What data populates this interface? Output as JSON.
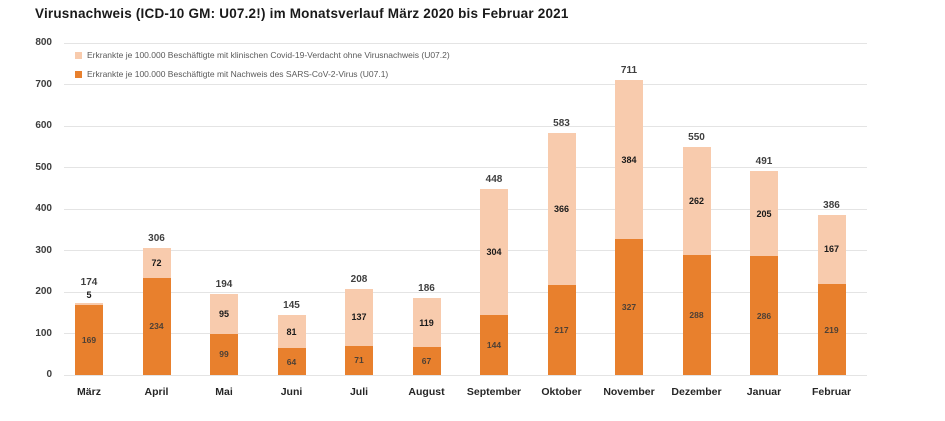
{
  "title": "Virusnachweis (ICD-10 GM: U07.2!) im Monatsverlauf März 2020 bis Februar 2021",
  "legend": [
    {
      "label": "Erkrankte je 100.000 Beschäftigte mit klinischen Covid-19-Verdacht ohne Virusnachweis (U07.2)",
      "color": "#F8CBAD"
    },
    {
      "label": "Erkrankte je 100.000 Beschäftigte mit Nachweis des SARS-CoV-2-Virus (U07.1)",
      "color": "#E8802D"
    }
  ],
  "colors": {
    "bar_dark": "#E8802D",
    "bar_light": "#F8CBAD",
    "gridline": "#E4E4E4",
    "title_text": "#1A1A1A",
    "legend_text": "#5A5A5A",
    "axis_tick_text": "#3D3D3D",
    "month_text": "#262626",
    "total_label_text": "#3F3F3F",
    "inside_dark_label_text": "#4D4036",
    "inside_light_label_text": "#1A1A1A"
  },
  "chart_data": {
    "type": "bar",
    "stacked": true,
    "title": "Virusnachweis (ICD-10 GM: U07.2!) im Monatsverlauf März 2020 bis Februar 2021",
    "categories": [
      "März",
      "April",
      "Mai",
      "Juni",
      "Juli",
      "August",
      "September",
      "Oktober",
      "November",
      "Dezember",
      "Januar",
      "Februar"
    ],
    "series": [
      {
        "name": "Erkrankte je 100.000 Beschäftigte mit Nachweis des SARS-CoV-2-Virus (U07.1)",
        "color": "#E8802D",
        "values": [
          169,
          234,
          99,
          64,
          71,
          67,
          144,
          217,
          327,
          288,
          286,
          219
        ]
      },
      {
        "name": "Erkrankte je 100.000 Beschäftigte mit klinischen Covid-19-Verdacht ohne Virusnachweis (U07.2)",
        "color": "#F8CBAD",
        "values": [
          5,
          72,
          95,
          81,
          137,
          119,
          304,
          366,
          384,
          262,
          205,
          167
        ]
      }
    ],
    "totals": [
      174,
      306,
      194,
      145,
      208,
      186,
      448,
      583,
      711,
      550,
      491,
      386
    ],
    "xlabel": "",
    "ylabel": "",
    "ylim": [
      0,
      800
    ],
    "ytick_step": 100,
    "yticks": [
      "0",
      "100",
      "200",
      "300",
      "400",
      "500",
      "600",
      "700",
      "800"
    ],
    "grid": true,
    "legend_position": "top-left-inside"
  }
}
